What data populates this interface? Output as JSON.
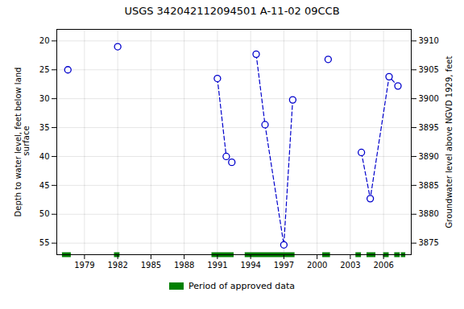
{
  "chart_data": {
    "type": "scatter",
    "title": "USGS 342042112094501 A-11-02 09CCB",
    "ylabel": "Depth to water level, feet below land\n surface",
    "y2label": "Groundwater level above NGVD 1929, feet",
    "xlim": [
      1976.5,
      2008.5
    ],
    "xticks": [
      1979,
      1982,
      1985,
      1988,
      1991,
      1994,
      1997,
      2000,
      2003,
      2006
    ],
    "ylim": [
      57,
      18
    ],
    "yticks": [
      20,
      25,
      30,
      35,
      40,
      45,
      50,
      55
    ],
    "y2lim": [
      3873,
      3912
    ],
    "y2ticks": [
      3875,
      3880,
      3885,
      3890,
      3895,
      3900,
      3905,
      3910
    ],
    "grid": true,
    "legend": "below",
    "series": [
      {
        "type": "line",
        "line_style": "dashed",
        "color": "#0000CC",
        "x": [
          1991.0,
          1991.8,
          1992.3
        ],
        "values": [
          26.5,
          40.0,
          41.0
        ]
      },
      {
        "type": "line",
        "line_style": "dashed",
        "color": "#0000CC",
        "x": [
          1994.5,
          1995.3,
          1997.0,
          1997.8
        ],
        "values": [
          22.3,
          34.5,
          55.3,
          30.2
        ]
      },
      {
        "type": "line",
        "line_style": "dashed",
        "color": "#0000CC",
        "x": [
          2004.0,
          2004.8,
          2006.5,
          2007.3
        ],
        "values": [
          39.3,
          47.3,
          26.2,
          27.8
        ]
      },
      {
        "type": "scatter",
        "marker": "circle",
        "color": "#0000CC",
        "x": [
          1977.5,
          1982.0,
          1991.0,
          1991.8,
          1992.3,
          1994.5,
          1995.3,
          1997.0,
          1997.8,
          2001.0,
          2004.0,
          2004.8,
          2006.5,
          2007.3
        ],
        "values": [
          25.0,
          21.0,
          26.5,
          40.0,
          41.0,
          22.3,
          34.5,
          55.3,
          30.2,
          23.2,
          39.3,
          47.3,
          26.2,
          27.8
        ]
      },
      {
        "type": "period",
        "name": "Period of approved data",
        "color": "#008000",
        "periods": [
          [
            1977.0,
            1977.8
          ],
          [
            1981.7,
            1982.2
          ],
          [
            1990.5,
            1992.5
          ],
          [
            1993.5,
            1998.0
          ],
          [
            2000.5,
            2001.2
          ],
          [
            2003.5,
            2004.0
          ],
          [
            2004.5,
            2005.3
          ],
          [
            2006.0,
            2006.5
          ],
          [
            2007.0,
            2007.5
          ],
          [
            2007.6,
            2008.0
          ]
        ]
      }
    ]
  }
}
